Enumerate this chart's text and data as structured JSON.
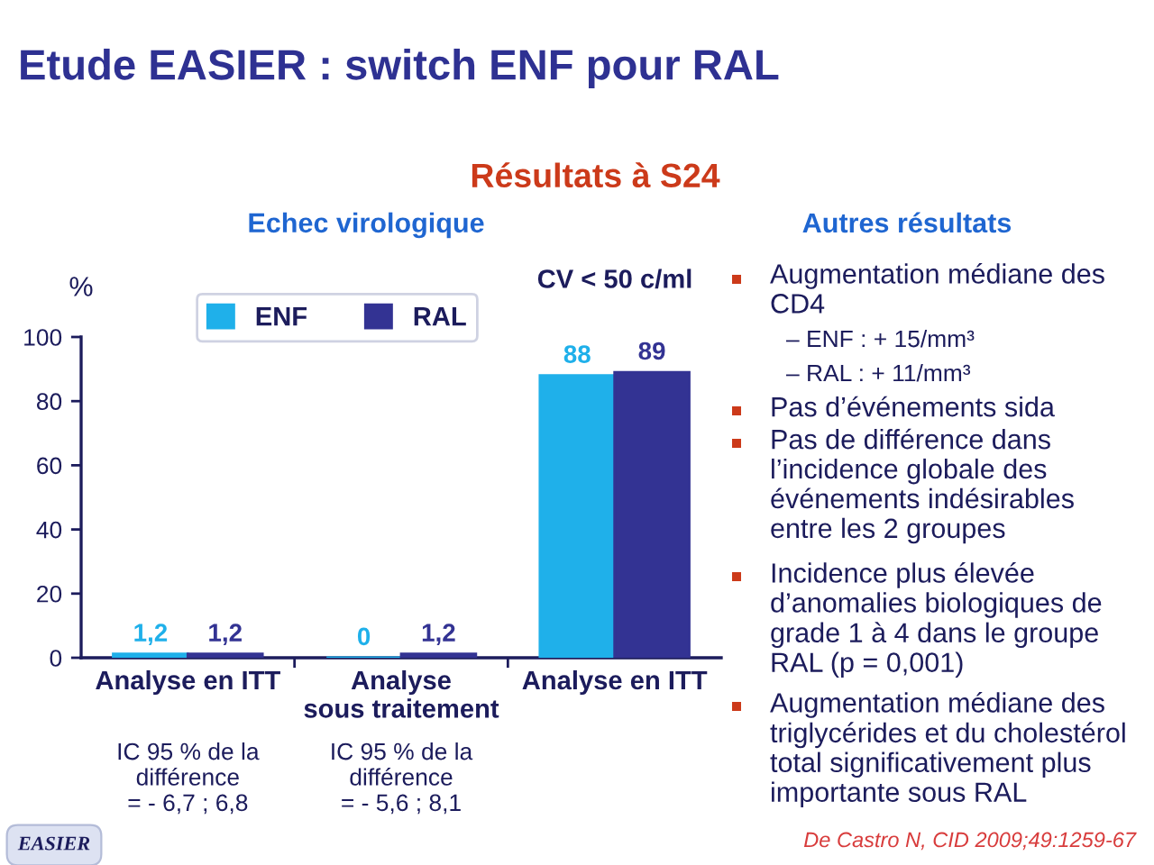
{
  "chart_data": {
    "type": "bar",
    "title": "Etude EASIER : switch ENF pour RAL",
    "subtitle": "Résultats à S24",
    "ylabel": "%",
    "categories": [
      "Analyse en ITT",
      "Analyse\nsous traitement",
      "Analyse en ITT"
    ],
    "series": [
      {
        "name": "ENF",
        "color": "#1fb0ea",
        "values": [
          1.2,
          0,
          88
        ],
        "value_labels": [
          "1,2",
          "0",
          "88"
        ]
      },
      {
        "name": "RAL",
        "color": "#333393",
        "values": [
          1.2,
          1.2,
          89
        ],
        "value_labels": [
          "1,2",
          "1,2",
          "89"
        ]
      }
    ],
    "ylim": [
      0,
      100
    ],
    "yticks": [
      0,
      20,
      40,
      60,
      80,
      100
    ],
    "legend": "top",
    "annotations": [
      "Echec virologique",
      "CV < 50 c/ml",
      "IC 95 % de la\ndifférence\n= - 6,7 ; 6,8",
      "IC 95 % de la\ndifférence\n= - 5,6 ; 8,1",
      "Autres résultats",
      "Augmentation médiane des\nCD4",
      "– ENF : + 15/mm³",
      "– RAL : + 11/mm³",
      "Pas d’événements sida",
      "Pas de différence dans\nl’incidence globale des\névénements indésirables\nentre les 2 groupes",
      "Incidence plus élevée\nd’anomalies biologiques de\ngrade 1 à 4 dans le groupe\nRAL (p = 0,001)",
      "Augmentation médiane des\ntriglycérides et du cholestérol\ntotal significativement plus\nimportante sous RAL",
      "De Castro N, CID 2009;49:1259-67",
      "EASIER"
    ]
  }
}
